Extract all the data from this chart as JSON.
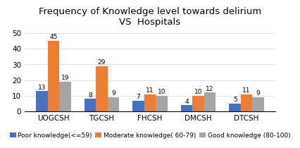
{
  "title": "Frequency of Knowledge level towards delirium\nVS  Hospitals",
  "categories": [
    "UOGCSH",
    "TGCSH",
    "FHCSH",
    "DMCSH",
    "DTCSH"
  ],
  "series": [
    {
      "label": "Poor knowledge(<=59)",
      "values": [
        13,
        8,
        7,
        4,
        5
      ],
      "color": "#4472C4"
    },
    {
      "label": "Moderate knowledge( 60-79)",
      "values": [
        45,
        29,
        11,
        10,
        11
      ],
      "color": "#ED7D31"
    },
    {
      "label": "Good knowledge (80-100)",
      "values": [
        19,
        9,
        10,
        12,
        9
      ],
      "color": "#A5A5A5"
    }
  ],
  "ylim": [
    0,
    53
  ],
  "yticks": [
    0,
    10,
    20,
    30,
    40,
    50
  ],
  "bar_width": 0.24,
  "title_fontsize": 9.5,
  "legend_fontsize": 6.5,
  "tick_fontsize": 7.5,
  "label_fontsize": 6.5,
  "background_color": "#ffffff"
}
